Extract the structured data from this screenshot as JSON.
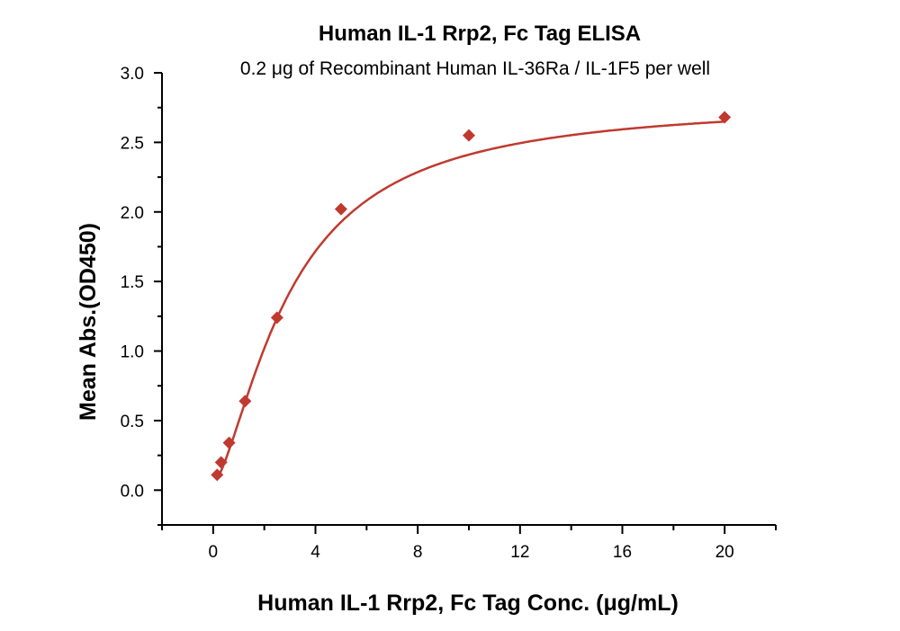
{
  "chart_data": {
    "type": "scatter",
    "title": "Human IL-1 Rrp2, Fc Tag ELISA",
    "subtitle": "0.2 μg of Recombinant Human IL-36Ra / IL-1F5 per well",
    "xlabel": "Human IL-1 Rrp2, Fc Tag Conc. (μg/mL)",
    "ylabel": "Mean Abs.(OD450)",
    "xlim": [
      -2,
      22
    ],
    "ylim": [
      -0.25,
      3.0
    ],
    "xticks": [
      "0",
      "4",
      "8",
      "12",
      "16",
      "20"
    ],
    "yticks": [
      "0.0",
      "0.5",
      "1.0",
      "1.5",
      "2.0",
      "2.5",
      "3.0"
    ],
    "grid": false,
    "fit_curve": "sigmoidal fit line",
    "series": [
      {
        "x": [
          0.156,
          0.3125,
          0.625,
          1.25,
          2.5,
          5,
          10,
          20
        ],
        "y": [
          0.11,
          0.2,
          0.34,
          0.64,
          1.24,
          2.02,
          2.55,
          2.68
        ],
        "marker": "diamond",
        "color": "#c0392f"
      }
    ]
  }
}
